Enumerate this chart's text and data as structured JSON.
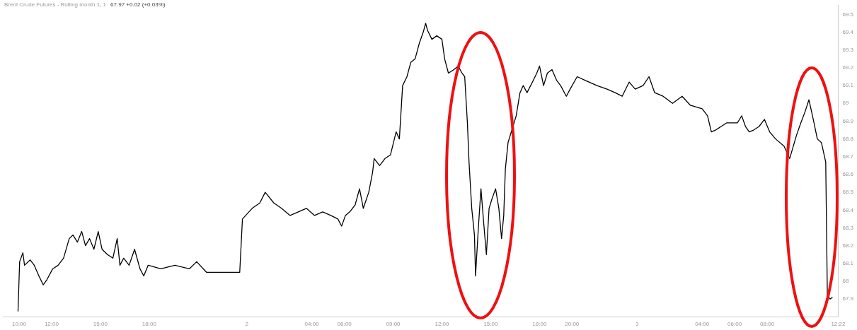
{
  "chart_data": {
    "type": "line",
    "title": "Brent Crude Futures - Rolling month 1, 1",
    "subtitle": "67.97  +0.02 (+0.03%)",
    "x": [
      "--01-01T09:56",
      "--01-01T10:02",
      "--01-01T10:14",
      "--01-01T10:20",
      "--01-01T10:41",
      "--01-01T10:56",
      "--01-01T11:13",
      "--01-01T11:29",
      "--01-01T11:43",
      "--01-01T12:04",
      "--01-01T12:24",
      "--01-01T12:44",
      "--01-01T13:05",
      "--01-01T13:19",
      "--01-01T13:35",
      "--01-01T13:51",
      "--01-01T14:05",
      "--01-01T14:20",
      "--01-01T14:36",
      "--01-01T14:52",
      "--01-01T15:06",
      "--01-01T15:26",
      "--01-01T15:46",
      "--01-01T16:02",
      "--01-01T16:12",
      "--01-01T16:26",
      "--01-01T16:46",
      "--01-01T17:06",
      "--01-01T17:26",
      "--01-01T17:40",
      "--01-01T17:56",
      "--01-01T18:43",
      "--01-01T19:35",
      "--01-01T20:28",
      "--01-01T20:55",
      "--01-01T21:32",
      "--01-01T23:34",
      "--01-01T23:44",
      "--01-02T00:20",
      "--01-02T00:48",
      "--01-02T01:08",
      "--01-02T01:40",
      "--01-02T02:08",
      "--01-02T02:40",
      "--01-02T03:40",
      "--01-02T04:10",
      "--01-02T04:40",
      "--01-02T05:10",
      "--01-02T05:36",
      "--01-02T05:50",
      "--01-02T06:04",
      "--01-02T06:20",
      "--01-02T06:40",
      "--01-02T06:56",
      "--01-02T07:10",
      "--01-02T07:30",
      "--01-02T07:44",
      "--01-02T07:50",
      "--01-02T08:10",
      "--01-02T08:30",
      "--01-02T08:50",
      "--01-02T09:11",
      "--01-02T09:23",
      "--01-02T09:35",
      "--01-02T09:51",
      "--01-02T10:05",
      "--01-02T10:21",
      "--01-02T10:37",
      "--01-02T10:51",
      "--01-02T11:00",
      "--01-02T11:07",
      "--01-02T11:23",
      "--01-02T11:41",
      "--01-02T12:00",
      "--01-02T12:10",
      "--01-02T12:24",
      "--01-02T12:44",
      "--01-02T13:00",
      "--01-02T13:14",
      "--01-02T13:24",
      "--01-02T13:34",
      "--01-02T13:40",
      "--01-02T13:50",
      "--01-02T14:00",
      "--01-02T14:04",
      "--01-02T14:14",
      "--01-02T14:24",
      "--01-02T14:34",
      "--01-02T14:44",
      "--01-02T14:54",
      "--01-02T15:04",
      "--01-02T15:18",
      "--01-02T15:30",
      "--01-02T15:40",
      "--01-02T15:48",
      "--01-02T15:54",
      "--01-02T16:04",
      "--01-02T16:18",
      "--01-02T16:34",
      "--01-02T16:48",
      "--01-02T17:00",
      "--01-02T17:14",
      "--01-02T17:34",
      "--01-02T17:50",
      "--01-02T18:00",
      "--01-02T18:15",
      "--01-02T18:29",
      "--01-02T18:46",
      "--01-02T19:03",
      "--01-02T19:18",
      "--01-02T19:39",
      "--01-02T19:53",
      "--01-02T20:19",
      "--01-02T20:48",
      "--01-02T21:32",
      "--01-02T22:09",
      "--01-02T22:39",
      "--01-02T23:05",
      "--01-02T23:31",
      "--01-02T23:53",
      "--01-03T00:22",
      "--01-03T00:44",
      "--01-03T01:05",
      "--01-03T01:36",
      "--01-03T02:11",
      "--01-03T02:46",
      "--01-03T03:16",
      "--01-03T04:00",
      "--01-03T04:20",
      "--01-03T04:34",
      "--01-03T04:50",
      "--01-03T05:10",
      "--01-03T05:30",
      "--01-03T05:50",
      "--01-03T06:10",
      "--01-03T06:26",
      "--01-03T06:40",
      "--01-03T06:54",
      "--01-03T07:10",
      "--01-03T07:30",
      "--01-03T07:50",
      "--01-03T08:09",
      "--01-03T08:31",
      "--01-03T09:02",
      "--01-03T09:23",
      "--01-03T09:48",
      "--01-03T10:04",
      "--01-03T10:19",
      "--01-03T10:34",
      "--01-03T10:50",
      "--01-03T11:05",
      "--01-03T11:20",
      "--01-03T11:36",
      "--01-03T11:42",
      "--01-03T11:52",
      "--01-03T12:01"
    ],
    "series": [
      {
        "color": "#000000",
        "values": [
          67.83,
          68.11,
          68.16,
          68.09,
          68.12,
          68.09,
          68.03,
          67.98,
          68.01,
          68.07,
          68.09,
          68.13,
          68.24,
          68.26,
          68.22,
          68.28,
          68.2,
          68.24,
          68.18,
          68.28,
          68.18,
          68.15,
          68.13,
          68.24,
          68.09,
          68.13,
          68.09,
          68.18,
          68.07,
          68.03,
          68.09,
          68.07,
          68.09,
          68.07,
          68.11,
          68.05,
          68.05,
          68.35,
          68.41,
          68.44,
          68.5,
          68.44,
          68.41,
          68.37,
          68.41,
          68.37,
          68.39,
          68.37,
          68.35,
          68.31,
          68.37,
          68.39,
          68.43,
          68.52,
          68.41,
          68.5,
          68.61,
          68.69,
          68.65,
          68.69,
          68.71,
          68.84,
          68.8,
          69.1,
          69.15,
          69.23,
          69.25,
          69.34,
          69.4,
          69.45,
          69.41,
          69.36,
          69.38,
          69.36,
          69.25,
          69.17,
          69.19,
          69.21,
          69.17,
          69.15,
          68.89,
          68.67,
          68.41,
          68.26,
          68.03,
          68.29,
          68.52,
          68.33,
          68.15,
          68.41,
          68.46,
          68.52,
          68.41,
          68.24,
          68.37,
          68.63,
          68.78,
          68.85,
          68.93,
          69.06,
          69.1,
          69.06,
          69.12,
          69.17,
          69.21,
          69.1,
          69.17,
          69.19,
          69.13,
          69.1,
          69.04,
          69.08,
          69.15,
          69.13,
          69.1,
          69.08,
          69.06,
          69.04,
          69.12,
          69.08,
          69.1,
          69.15,
          69.06,
          69.04,
          69,
          69.04,
          68.99,
          68.97,
          68.93,
          68.84,
          68.85,
          68.87,
          68.89,
          68.89,
          68.89,
          68.93,
          68.87,
          68.84,
          68.85,
          68.87,
          68.91,
          68.84,
          68.8,
          68.76,
          68.69,
          68.82,
          68.89,
          68.95,
          69.02,
          68.91,
          68.8,
          68.78,
          68.67,
          67.92,
          67.9,
          67.91
        ]
      }
    ],
    "xlim": [
      "--01-01T09:00",
      "--01-03T12:22"
    ],
    "ylim": [
      67.8,
      69.55
    ],
    "xticks": [
      {
        "value": "--01-01T10:00",
        "label": "10:00"
      },
      {
        "value": "--01-01T12:00",
        "label": "12:00"
      },
      {
        "value": "--01-01T15:00",
        "label": "15:00"
      },
      {
        "value": "--01-01T18:00",
        "label": "18:00"
      },
      {
        "value": "--01-02",
        "label": "2"
      },
      {
        "value": "--01-02T04:00",
        "label": "04:00"
      },
      {
        "value": "--01-02T06:00",
        "label": "06:00"
      },
      {
        "value": "--01-02T09:00",
        "label": "09:00"
      },
      {
        "value": "--01-02T12:00",
        "label": "12:00"
      },
      {
        "value": "--01-02T15:00",
        "label": "15:00"
      },
      {
        "value": "--01-02T18:00",
        "label": "18:00"
      },
      {
        "value": "--01-02T20:00",
        "label": "20:00"
      },
      {
        "value": "--01-03",
        "label": "3"
      },
      {
        "value": "--01-03T04:00",
        "label": "04:00"
      },
      {
        "value": "--01-03T06:00",
        "label": "06:00"
      },
      {
        "value": "--01-03T08:00",
        "label": "08:00"
      },
      {
        "value": "--01-03T12:22",
        "label": "12:22"
      }
    ],
    "yticks": [
      67.9,
      68.0,
      68.1,
      68.2,
      68.3,
      68.4,
      68.5,
      68.6,
      68.7,
      68.8,
      68.9,
      69.0,
      69.1,
      69.2,
      69.3,
      69.4,
      69.5
    ],
    "grid": false,
    "legend": false,
    "marker": "none",
    "line_style": "solid"
  }
}
